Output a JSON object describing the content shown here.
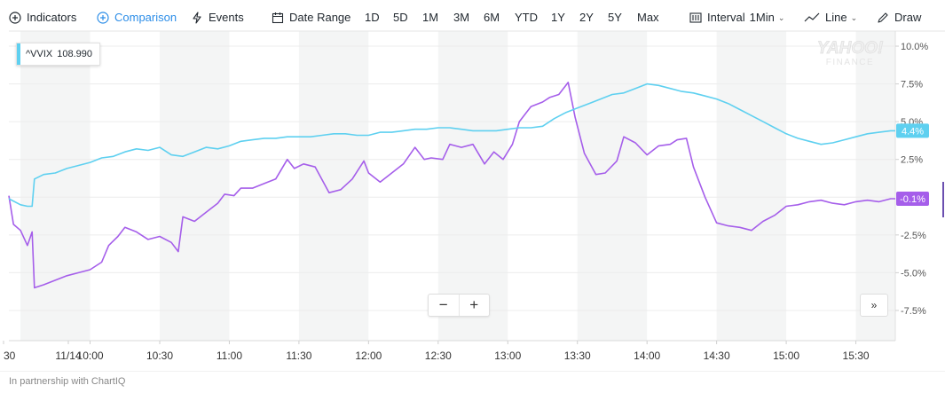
{
  "toolbar": {
    "indicators": "Indicators",
    "comparison": "Comparison",
    "events": "Events",
    "date_range": "Date Range",
    "ranges": [
      "1D",
      "5D",
      "1M",
      "3M",
      "6M",
      "YTD",
      "1Y",
      "2Y",
      "5Y",
      "Max"
    ],
    "interval_label": "Interval",
    "interval_value": "1Min",
    "chart_type": "Line",
    "draw": "Draw"
  },
  "watermark": {
    "line1": "YAHOO!",
    "line2": "FINANCE"
  },
  "legend": {
    "symbol": "^VVIX",
    "value": "108.990"
  },
  "footer": "In partnership with ChartIQ",
  "zoom": {
    "out": "−",
    "in": "+"
  },
  "home_button": "»",
  "colors": {
    "accent": "#2d8ee8",
    "primary_series": "#a55eea",
    "comparison_series": "#5ed0f0"
  },
  "chart_data": {
    "type": "line",
    "y_unit": "percent",
    "ylim": [
      -9.5,
      11
    ],
    "y_ticks": [
      {
        "value": 10,
        "label": "10.0%"
      },
      {
        "value": 7.5,
        "label": "7.5%"
      },
      {
        "value": 5,
        "label": "5.0%"
      },
      {
        "value": 2.5,
        "label": "2.5%"
      },
      {
        "value": -2.5,
        "label": "-2.5%"
      },
      {
        "value": -5,
        "label": "-5.0%"
      },
      {
        "value": -7.5,
        "label": "-7.5%"
      }
    ],
    "x_start": "09:25",
    "x_end": "15:47",
    "x_ticks": [
      {
        "time": "09:30",
        "label": "30"
      },
      {
        "time": "09:30",
        "label": "11/14"
      },
      {
        "time": "10:00",
        "label": "10:00"
      },
      {
        "time": "10:30",
        "label": "10:30"
      },
      {
        "time": "11:00",
        "label": "11:00"
      },
      {
        "time": "11:30",
        "label": "11:30"
      },
      {
        "time": "12:00",
        "label": "12:00"
      },
      {
        "time": "12:30",
        "label": "12:30"
      },
      {
        "time": "13:00",
        "label": "13:00"
      },
      {
        "time": "13:30",
        "label": "13:30"
      },
      {
        "time": "14:00",
        "label": "14:00"
      },
      {
        "time": "14:30",
        "label": "14:30"
      },
      {
        "time": "15:00",
        "label": "15:00"
      },
      {
        "time": "15:30",
        "label": "15:30"
      }
    ],
    "series": [
      {
        "color": "#a55eea",
        "end_label": "-0.1%",
        "points": [
          [
            "09:25",
            0.1
          ],
          [
            "09:27",
            -1.8
          ],
          [
            "09:30",
            -2.2
          ],
          [
            "09:33",
            -3.2
          ],
          [
            "09:35",
            -2.3
          ],
          [
            "09:36",
            -6.0
          ],
          [
            "09:40",
            -5.8
          ],
          [
            "09:45",
            -5.5
          ],
          [
            "09:50",
            -5.2
          ],
          [
            "09:55",
            -5.0
          ],
          [
            "10:00",
            -4.8
          ],
          [
            "10:05",
            -4.3
          ],
          [
            "10:08",
            -3.2
          ],
          [
            "10:12",
            -2.6
          ],
          [
            "10:15",
            -2.0
          ],
          [
            "10:20",
            -2.3
          ],
          [
            "10:25",
            -2.8
          ],
          [
            "10:30",
            -2.6
          ],
          [
            "10:35",
            -3.0
          ],
          [
            "10:38",
            -3.6
          ],
          [
            "10:40",
            -1.3
          ],
          [
            "10:45",
            -1.6
          ],
          [
            "10:50",
            -1.0
          ],
          [
            "10:55",
            -0.4
          ],
          [
            "10:58",
            0.2
          ],
          [
            "11:02",
            0.1
          ],
          [
            "11:05",
            0.6
          ],
          [
            "11:10",
            0.6
          ],
          [
            "11:15",
            0.9
          ],
          [
            "11:20",
            1.2
          ],
          [
            "11:25",
            2.5
          ],
          [
            "11:28",
            1.9
          ],
          [
            "11:32",
            2.2
          ],
          [
            "11:37",
            2.0
          ],
          [
            "11:43",
            0.3
          ],
          [
            "11:48",
            0.5
          ],
          [
            "11:53",
            1.2
          ],
          [
            "11:58",
            2.4
          ],
          [
            "12:00",
            1.6
          ],
          [
            "12:05",
            1.0
          ],
          [
            "12:10",
            1.6
          ],
          [
            "12:15",
            2.2
          ],
          [
            "12:20",
            3.3
          ],
          [
            "12:24",
            2.5
          ],
          [
            "12:27",
            2.6
          ],
          [
            "12:32",
            2.5
          ],
          [
            "12:35",
            3.5
          ],
          [
            "12:40",
            3.3
          ],
          [
            "12:45",
            3.5
          ],
          [
            "12:50",
            2.2
          ],
          [
            "12:54",
            3.0
          ],
          [
            "12:58",
            2.5
          ],
          [
            "13:02",
            3.5
          ],
          [
            "13:05",
            5.0
          ],
          [
            "13:10",
            6.0
          ],
          [
            "13:15",
            6.3
          ],
          [
            "13:18",
            6.6
          ],
          [
            "13:22",
            6.8
          ],
          [
            "13:26",
            7.6
          ],
          [
            "13:29",
            5.3
          ],
          [
            "13:33",
            2.9
          ],
          [
            "13:38",
            1.5
          ],
          [
            "13:42",
            1.6
          ],
          [
            "13:47",
            2.4
          ],
          [
            "13:50",
            4.0
          ],
          [
            "13:55",
            3.6
          ],
          [
            "14:00",
            2.8
          ],
          [
            "14:05",
            3.4
          ],
          [
            "14:10",
            3.5
          ],
          [
            "14:13",
            3.8
          ],
          [
            "14:17",
            3.9
          ],
          [
            "14:20",
            2.0
          ],
          [
            "14:25",
            0.0
          ],
          [
            "14:30",
            -1.7
          ],
          [
            "14:35",
            -1.9
          ],
          [
            "14:40",
            -2.0
          ],
          [
            "14:45",
            -2.2
          ],
          [
            "14:50",
            -1.6
          ],
          [
            "14:55",
            -1.2
          ],
          [
            "15:00",
            -0.6
          ],
          [
            "15:05",
            -0.5
          ],
          [
            "15:10",
            -0.3
          ],
          [
            "15:15",
            -0.2
          ],
          [
            "15:20",
            -0.4
          ],
          [
            "15:25",
            -0.5
          ],
          [
            "15:30",
            -0.3
          ],
          [
            "15:35",
            -0.2
          ],
          [
            "15:40",
            -0.3
          ],
          [
            "15:45",
            -0.1
          ],
          [
            "15:47",
            -0.1
          ]
        ]
      },
      {
        "name": "^VVIX",
        "color": "#5ed0f0",
        "end_label": "4.4%",
        "points": [
          [
            "09:25",
            -0.1
          ],
          [
            "09:30",
            -0.5
          ],
          [
            "09:33",
            -0.6
          ],
          [
            "09:35",
            -0.6
          ],
          [
            "09:36",
            1.2
          ],
          [
            "09:40",
            1.5
          ],
          [
            "09:45",
            1.6
          ],
          [
            "09:50",
            1.9
          ],
          [
            "09:55",
            2.1
          ],
          [
            "10:00",
            2.3
          ],
          [
            "10:05",
            2.6
          ],
          [
            "10:10",
            2.7
          ],
          [
            "10:15",
            3.0
          ],
          [
            "10:20",
            3.2
          ],
          [
            "10:25",
            3.1
          ],
          [
            "10:30",
            3.3
          ],
          [
            "10:35",
            2.8
          ],
          [
            "10:40",
            2.7
          ],
          [
            "10:45",
            3.0
          ],
          [
            "10:50",
            3.3
          ],
          [
            "10:55",
            3.2
          ],
          [
            "11:00",
            3.4
          ],
          [
            "11:05",
            3.7
          ],
          [
            "11:10",
            3.8
          ],
          [
            "11:15",
            3.9
          ],
          [
            "11:20",
            3.9
          ],
          [
            "11:25",
            4.0
          ],
          [
            "11:30",
            4.0
          ],
          [
            "11:35",
            4.0
          ],
          [
            "11:40",
            4.1
          ],
          [
            "11:45",
            4.2
          ],
          [
            "11:50",
            4.2
          ],
          [
            "11:55",
            4.1
          ],
          [
            "12:00",
            4.1
          ],
          [
            "12:05",
            4.3
          ],
          [
            "12:10",
            4.3
          ],
          [
            "12:15",
            4.4
          ],
          [
            "12:20",
            4.5
          ],
          [
            "12:25",
            4.5
          ],
          [
            "12:30",
            4.6
          ],
          [
            "12:35",
            4.6
          ],
          [
            "12:40",
            4.5
          ],
          [
            "12:45",
            4.4
          ],
          [
            "12:50",
            4.4
          ],
          [
            "12:55",
            4.4
          ],
          [
            "13:00",
            4.5
          ],
          [
            "13:05",
            4.6
          ],
          [
            "13:10",
            4.6
          ],
          [
            "13:15",
            4.7
          ],
          [
            "13:20",
            5.2
          ],
          [
            "13:25",
            5.6
          ],
          [
            "13:30",
            5.9
          ],
          [
            "13:35",
            6.2
          ],
          [
            "13:40",
            6.5
          ],
          [
            "13:45",
            6.8
          ],
          [
            "13:50",
            6.9
          ],
          [
            "13:55",
            7.2
          ],
          [
            "14:00",
            7.5
          ],
          [
            "14:05",
            7.4
          ],
          [
            "14:10",
            7.2
          ],
          [
            "14:15",
            7.0
          ],
          [
            "14:20",
            6.9
          ],
          [
            "14:25",
            6.7
          ],
          [
            "14:30",
            6.5
          ],
          [
            "14:35",
            6.2
          ],
          [
            "14:40",
            5.8
          ],
          [
            "14:45",
            5.4
          ],
          [
            "14:50",
            5.0
          ],
          [
            "14:55",
            4.6
          ],
          [
            "15:00",
            4.2
          ],
          [
            "15:05",
            3.9
          ],
          [
            "15:10",
            3.7
          ],
          [
            "15:15",
            3.5
          ],
          [
            "15:20",
            3.6
          ],
          [
            "15:25",
            3.8
          ],
          [
            "15:30",
            4.0
          ],
          [
            "15:35",
            4.2
          ],
          [
            "15:40",
            4.3
          ],
          [
            "15:45",
            4.4
          ],
          [
            "15:47",
            4.4
          ]
        ]
      }
    ]
  }
}
